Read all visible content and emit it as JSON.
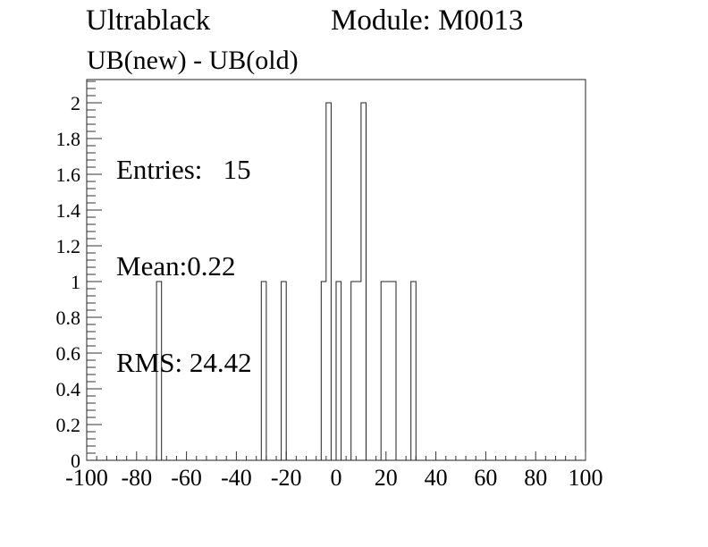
{
  "header": {
    "title_left": "Ultrablack",
    "title_right": "Module: M0013",
    "subtitle": "UB(new) - UB(old)"
  },
  "stats": {
    "lines": [
      "Entries:   15",
      "Mean:0.22",
      "RMS: 24.42"
    ]
  },
  "colors": {
    "background": "#ffffff",
    "frame": "#222222",
    "tick": "#333333",
    "hist_line": "#222222",
    "text": "#000000"
  },
  "chart_data": {
    "type": "bar",
    "subtype": "step-histogram",
    "title": "UB(new) - UB(old)",
    "xlabel": "",
    "ylabel": "",
    "xlim": [
      -100,
      100
    ],
    "ylim": [
      0,
      2.13
    ],
    "grid": false,
    "legend": false,
    "bin_width": 2,
    "bins": [
      {
        "x_low": -72,
        "x_high": -70,
        "count": 1
      },
      {
        "x_low": -30,
        "x_high": -28,
        "count": 1
      },
      {
        "x_low": -22,
        "x_high": -20,
        "count": 1
      },
      {
        "x_low": -6,
        "x_high": -4,
        "count": 1
      },
      {
        "x_low": -4,
        "x_high": -2,
        "count": 2
      },
      {
        "x_low": 0,
        "x_high": 2,
        "count": 1
      },
      {
        "x_low": 6,
        "x_high": 8,
        "count": 1
      },
      {
        "x_low": 8,
        "x_high": 10,
        "count": 1
      },
      {
        "x_low": 10,
        "x_high": 12,
        "count": 2
      },
      {
        "x_low": 18,
        "x_high": 20,
        "count": 1
      },
      {
        "x_low": 20,
        "x_high": 22,
        "count": 1
      },
      {
        "x_low": 22,
        "x_high": 24,
        "count": 1
      },
      {
        "x_low": 30,
        "x_high": 32,
        "count": 1
      }
    ],
    "x_ticks": {
      "major_step": 20,
      "minor_step": 4,
      "labels": [
        "-100",
        "-80",
        "-60",
        "-40",
        "-20",
        "0",
        "20",
        "40",
        "60",
        "80",
        "100"
      ]
    },
    "y_ticks": {
      "major_step": 0.2,
      "minor_step": 0.04,
      "labels": [
        "0",
        "0.2",
        "0.4",
        "0.6",
        "0.8",
        "1",
        "1.2",
        "1.4",
        "1.6",
        "1.8",
        "2"
      ]
    },
    "entries": 15,
    "mean": 0.22,
    "rms": 24.42
  }
}
